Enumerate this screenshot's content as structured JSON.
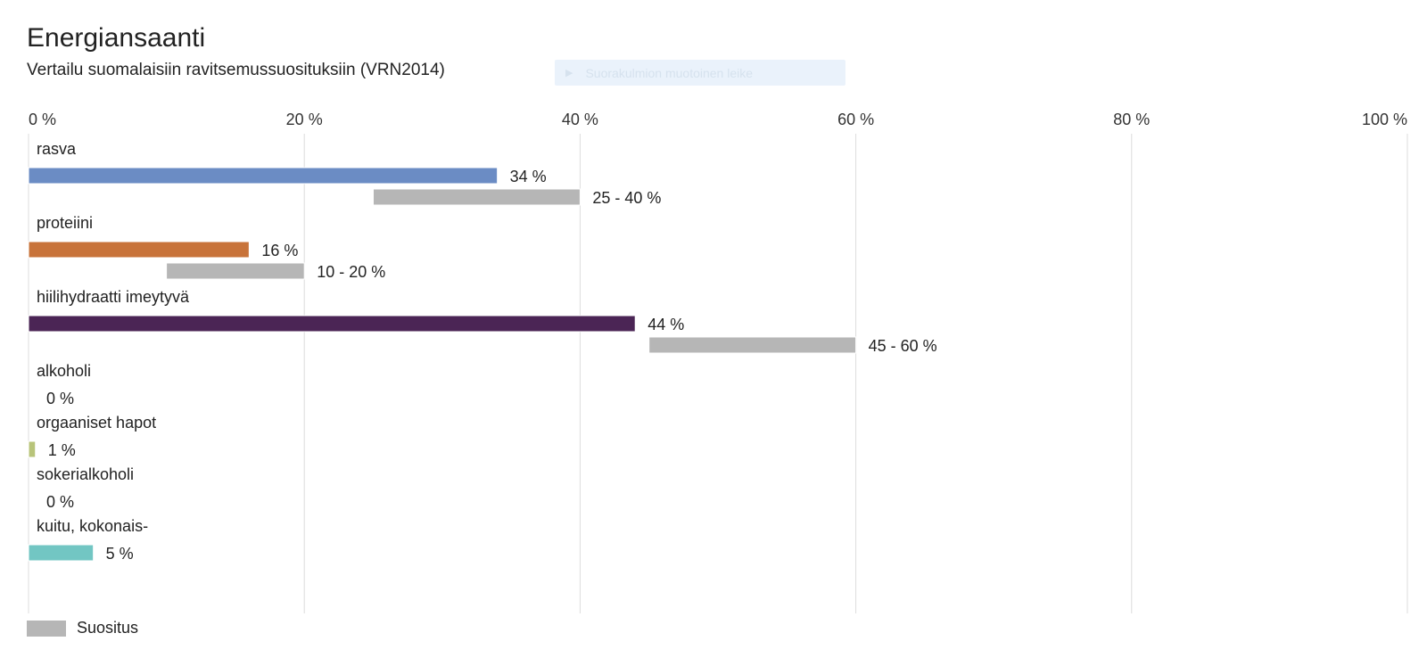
{
  "title": "Energiansaanti",
  "subtitle": "Vertailu suomalaisiin ravitsemussuosituksiin (VRN2014)",
  "hidden_button_label": "Suorakulmion muotoinen leike",
  "legend": {
    "label": "Suositus",
    "color": "#b6b6b6"
  },
  "chart_data": {
    "type": "bar",
    "orientation": "horizontal",
    "title": "Energiansaanti",
    "subtitle": "Vertailu suomalaisiin ravitsemussuosituksiin (VRN2014)",
    "xlim": [
      0,
      100
    ],
    "x_ticks": [
      0,
      20,
      40,
      60,
      80,
      100
    ],
    "x_tick_labels": [
      "0 %",
      "20 %",
      "40 %",
      "60 %",
      "80 %",
      "100 %"
    ],
    "grid": true,
    "legend_position": "bottom-left",
    "categories": [
      {
        "name": "rasva",
        "value": 34,
        "value_label": "34 %",
        "color": "#6b8cc4",
        "recommendation": {
          "min": 25,
          "max": 40,
          "label": "25 - 40 %"
        }
      },
      {
        "name": "proteiini",
        "value": 16,
        "value_label": "16 %",
        "color": "#c8733a",
        "recommendation": {
          "min": 10,
          "max": 20,
          "label": "10 - 20 %"
        }
      },
      {
        "name": "hiilihydraatti imeytyvä",
        "value": 44,
        "value_label": "44 %",
        "color": "#4b2555",
        "recommendation": {
          "min": 45,
          "max": 60,
          "label": "45 - 60 %"
        }
      },
      {
        "name": "alkoholi",
        "value": 0,
        "value_label": "0 %",
        "color": "#a9a9a9",
        "recommendation": null
      },
      {
        "name": "orgaaniset hapot",
        "value": 0.5,
        "value_label": "1 %",
        "color": "#b8c47a",
        "recommendation": null
      },
      {
        "name": "sokerialkoholi",
        "value": 0,
        "value_label": "0 %",
        "color": "#a9a9a9",
        "recommendation": null
      },
      {
        "name": "kuitu, kokonais-",
        "value": 4.7,
        "value_label": "5 %",
        "color": "#72c6c3",
        "recommendation": null
      }
    ]
  }
}
